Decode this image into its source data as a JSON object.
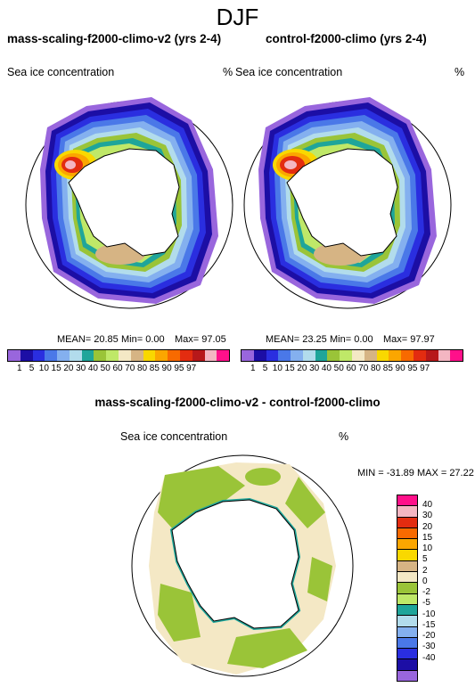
{
  "title": "DJF",
  "left_panel": {
    "title": "mass-scaling-f2000-climo-v2 (yrs 2-4)",
    "variable": "Sea ice concentration",
    "units": "%",
    "mean": "MEAN= 20.85",
    "min": "Min=  0.00",
    "max": "Max= 97.05"
  },
  "right_panel": {
    "title": "control-f2000-climo (yrs 2-4)",
    "variable": "Sea ice concentration",
    "units": "%",
    "mean": "MEAN= 23.25",
    "min": "Min=  0.00",
    "max": "Max= 97.97"
  },
  "top_colorbar": {
    "labels": [
      "1",
      "5",
      "10",
      "15",
      "20",
      "30",
      "40",
      "50",
      "60",
      "70",
      "80",
      "85",
      "90",
      "95",
      "97"
    ],
    "colors": [
      "#9966dd",
      "#1c0ea5",
      "#2a2ee0",
      "#4a78e8",
      "#84b0ef",
      "#b2dcec",
      "#1fa59a",
      "#9ac438",
      "#bfe868",
      "#f4e8c5",
      "#d6b484",
      "#f9d800",
      "#fba600",
      "#f86a00",
      "#e32c10",
      "#b7181a",
      "#f4b6c2",
      "#ff108a"
    ]
  },
  "diff_panel": {
    "title": "mass-scaling-f2000-climo-v2 - control-f2000-climo",
    "variable": "Sea ice concentration",
    "units": "%",
    "minmax": "MIN = -31.89 MAX =  27.22"
  },
  "diff_colorbar": {
    "labels": [
      "40",
      "30",
      "20",
      "15",
      "10",
      "5",
      "2",
      "0",
      "-2",
      "-5",
      "-10",
      "-15",
      "-20",
      "-30",
      "-40"
    ],
    "colors": [
      "#ff108a",
      "#f4b6c2",
      "#e32c10",
      "#f86a00",
      "#fba600",
      "#f9d800",
      "#d6b484",
      "#f4e8c5",
      "#9ac438",
      "#bfe868",
      "#1fa59a",
      "#b2dcec",
      "#84b0ef",
      "#4a78e8",
      "#2a2ee0",
      "#1c0ea5",
      "#9966dd"
    ]
  }
}
